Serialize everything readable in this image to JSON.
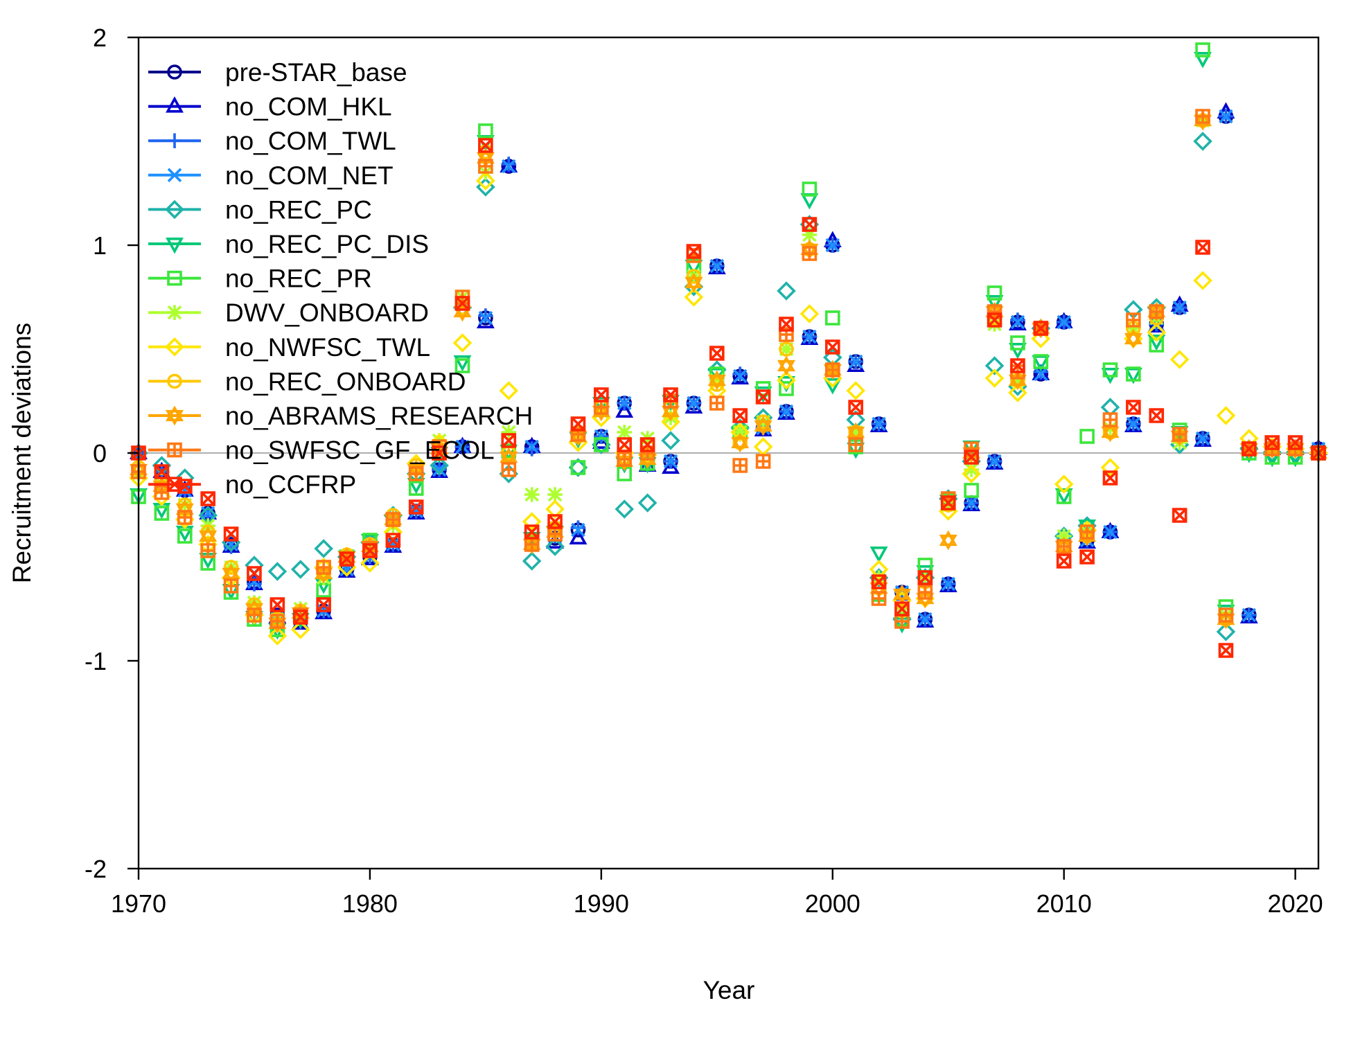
{
  "chart_data": {
    "type": "scatter",
    "xlabel": "Year",
    "ylabel": "Recruitment deviations",
    "xlim": [
      1970,
      2021
    ],
    "ylim": [
      -2,
      2
    ],
    "x_ticks": [
      1970,
      1980,
      1990,
      2000,
      2010,
      2020
    ],
    "y_ticks": [
      -2,
      -1,
      0,
      1,
      2
    ],
    "x_tick_labels": [
      "1970",
      "1980",
      "1990",
      "2000",
      "2010",
      "2020"
    ],
    "y_tick_labels": [
      "-2",
      "-1",
      "0",
      "1",
      "2"
    ],
    "zero_line": true,
    "legend_position": "top-left",
    "series": [
      {
        "name": "pre-STAR_base",
        "color": "#00008B",
        "marker": "circle",
        "values": [
          0.0,
          -0.09,
          -0.18,
          -0.29,
          -0.44,
          -0.62,
          -0.78,
          -0.81,
          -0.76,
          -0.56,
          -0.5,
          -0.44,
          -0.28,
          -0.08,
          0.03,
          0.65,
          1.38,
          0.03,
          -0.41,
          -0.37,
          0.08,
          0.24,
          -0.03,
          -0.04,
          0.24,
          0.9,
          0.37,
          0.12,
          0.2,
          0.56,
          1.0,
          0.44,
          0.14,
          -0.67,
          -0.8,
          -0.63,
          -0.24,
          -0.04,
          0.63,
          0.38,
          0.63,
          -0.42,
          -0.38,
          0.14,
          0.62,
          0.7,
          0.07,
          1.62,
          -0.78,
          0.02,
          0.02,
          0.02,
          0.0
        ]
      },
      {
        "name": "no_COM_HKL",
        "color": "#0000CD",
        "marker": "triangle",
        "values": [
          0.0,
          -0.09,
          -0.18,
          -0.29,
          -0.45,
          -0.63,
          -0.79,
          -0.82,
          -0.77,
          -0.57,
          -0.51,
          -0.45,
          -0.29,
          -0.09,
          0.03,
          0.63,
          1.38,
          0.03,
          -0.43,
          -0.41,
          0.05,
          0.2,
          -0.06,
          -0.07,
          0.22,
          0.89,
          0.36,
          0.11,
          0.19,
          0.55,
          1.02,
          0.42,
          0.13,
          -0.68,
          -0.81,
          -0.64,
          -0.25,
          -0.05,
          0.62,
          0.38,
          0.63,
          -0.43,
          -0.38,
          0.13,
          0.61,
          0.71,
          0.06,
          1.64,
          -0.79,
          0.02,
          0.02,
          0.02,
          0.0
        ]
      },
      {
        "name": "no_COM_TWL",
        "color": "#1E64F0",
        "marker": "plus",
        "values": [
          0.0,
          -0.09,
          -0.19,
          -0.3,
          -0.45,
          -0.63,
          -0.79,
          -0.81,
          -0.76,
          -0.56,
          -0.5,
          -0.44,
          -0.28,
          -0.08,
          0.03,
          0.66,
          1.39,
          0.02,
          -0.4,
          -0.36,
          0.08,
          0.24,
          -0.03,
          -0.04,
          0.24,
          0.9,
          0.38,
          0.12,
          0.2,
          0.56,
          1.0,
          0.44,
          0.14,
          -0.67,
          -0.8,
          -0.63,
          -0.24,
          -0.04,
          0.64,
          0.39,
          0.63,
          -0.42,
          -0.38,
          0.14,
          0.62,
          0.7,
          0.07,
          1.62,
          -0.78,
          0.02,
          0.02,
          0.02,
          0.0
        ]
      },
      {
        "name": "no_COM_NET",
        "color": "#1E90FF",
        "marker": "x",
        "values": [
          0.0,
          -0.09,
          -0.18,
          -0.29,
          -0.44,
          -0.62,
          -0.78,
          -0.81,
          -0.76,
          -0.56,
          -0.5,
          -0.44,
          -0.28,
          -0.08,
          0.03,
          0.65,
          1.38,
          0.03,
          -0.41,
          -0.37,
          0.08,
          0.24,
          -0.03,
          -0.04,
          0.24,
          0.9,
          0.37,
          0.12,
          0.2,
          0.56,
          1.0,
          0.44,
          0.14,
          -0.67,
          -0.8,
          -0.63,
          -0.24,
          -0.04,
          0.63,
          0.38,
          0.63,
          -0.42,
          -0.38,
          0.14,
          0.62,
          0.7,
          0.07,
          1.62,
          -0.78,
          0.02,
          0.02,
          0.02,
          0.0
        ]
      },
      {
        "name": "no_REC_PC",
        "color": "#20B2AA",
        "marker": "diamond",
        "values": [
          0.0,
          -0.06,
          -0.12,
          -0.3,
          -0.43,
          -0.54,
          -0.57,
          -0.56,
          -0.46,
          -0.5,
          -0.43,
          -0.3,
          -0.1,
          -0.06,
          0.7,
          1.28,
          -0.1,
          -0.52,
          -0.45,
          -0.07,
          0.04,
          -0.27,
          -0.24,
          0.06,
          0.8,
          0.4,
          0.12,
          0.17,
          0.78,
          1.1,
          0.46,
          0.16,
          -0.6,
          -0.8,
          -0.6,
          -0.22,
          -0.04,
          0.42,
          0.32,
          0.6,
          -0.4,
          -0.35,
          0.22,
          0.69,
          0.7,
          0.04,
          1.5,
          -0.86,
          0.02,
          0.0,
          0.0,
          0.0
        ]
      },
      {
        "name": "no_REC_PC_DIS",
        "color": "#00C878",
        "marker": "triangle-down",
        "values": [
          -0.2,
          -0.27,
          -0.38,
          -0.51,
          -0.66,
          -0.79,
          -0.85,
          -0.8,
          -0.63,
          -0.5,
          -0.42,
          -0.33,
          -0.15,
          0.0,
          0.44,
          1.5,
          0.01,
          -0.41,
          -0.38,
          0.07,
          0.24,
          -0.05,
          -0.05,
          0.25,
          0.9,
          0.38,
          0.1,
          0.29,
          0.34,
          1.22,
          0.33,
          0.02,
          -0.48,
          -0.82,
          -0.57,
          -0.23,
          0.03,
          0.73,
          0.5,
          0.44,
          -0.2,
          -0.35,
          0.38,
          0.38,
          0.54,
          0.1,
          1.9,
          -0.76,
          0.0,
          -0.02,
          -0.02,
          0.0
        ]
      },
      {
        "name": "no_REC_PR",
        "color": "#3CE63C",
        "marker": "square",
        "values": [
          -0.21,
          -0.29,
          -0.4,
          -0.53,
          -0.67,
          -0.8,
          -0.85,
          -0.78,
          -0.66,
          -0.5,
          -0.42,
          -0.32,
          -0.17,
          0.0,
          0.42,
          1.55,
          0.01,
          -0.43,
          -0.37,
          -0.07,
          0.04,
          -0.1,
          -0.05,
          0.25,
          0.9,
          0.38,
          0.1,
          0.31,
          0.31,
          1.27,
          0.65,
          0.03,
          -0.68,
          -0.8,
          -0.54,
          -0.23,
          -0.18,
          0.77,
          0.53,
          0.44,
          -0.21,
          0.08,
          0.4,
          0.38,
          0.52,
          0.11,
          1.94,
          -0.74,
          0.0,
          -0.02,
          -0.02,
          0.0
        ]
      },
      {
        "name": "DWV_ONBOARD",
        "color": "#ADFF2F",
        "marker": "asterisk",
        "values": [
          -0.1,
          -0.15,
          -0.25,
          -0.35,
          -0.55,
          -0.72,
          -0.8,
          -0.75,
          -0.6,
          -0.5,
          -0.45,
          -0.35,
          -0.08,
          0.06,
          0.75,
          1.35,
          0.1,
          -0.2,
          -0.2,
          0.1,
          0.2,
          0.1,
          0.07,
          0.17,
          0.85,
          0.35,
          0.1,
          0.15,
          0.5,
          1.05,
          0.4,
          0.1,
          -0.6,
          -0.75,
          -0.6,
          -0.25,
          -0.08,
          0.62,
          0.35,
          0.6,
          -0.4,
          -0.38,
          0.12,
          0.6,
          0.65,
          0.05,
          1.6,
          -0.78,
          0.02,
          0.02,
          0.02,
          0.0
        ]
      },
      {
        "name": "no_NWFSC_TWL",
        "color": "#FFE600",
        "marker": "diamond",
        "values": [
          -0.12,
          -0.21,
          -0.32,
          -0.44,
          -0.6,
          -0.78,
          -0.88,
          -0.85,
          -0.55,
          -0.55,
          -0.53,
          -0.38,
          -0.05,
          0.05,
          0.53,
          1.31,
          0.3,
          -0.33,
          -0.27,
          0.05,
          0.17,
          0.0,
          -0.01,
          0.15,
          0.75,
          0.3,
          0.1,
          0.03,
          0.35,
          0.67,
          0.36,
          0.3,
          -0.56,
          -0.71,
          -0.7,
          -0.28,
          -0.1,
          0.36,
          0.29,
          0.55,
          -0.15,
          -0.37,
          -0.07,
          0.55,
          0.58,
          0.45,
          0.83,
          0.18,
          0.07,
          0.03,
          0.02,
          0.0
        ]
      },
      {
        "name": "no_REC_ONBOARD",
        "color": "#FFC800",
        "marker": "circle",
        "values": [
          -0.07,
          -0.13,
          -0.25,
          -0.38,
          -0.55,
          -0.73,
          -0.8,
          -0.76,
          -0.58,
          -0.49,
          -0.44,
          -0.3,
          -0.06,
          0.02,
          0.7,
          1.45,
          0.0,
          -0.42,
          -0.36,
          0.08,
          0.22,
          -0.02,
          -0.02,
          0.22,
          0.85,
          0.33,
          0.05,
          0.15,
          0.5,
          0.98,
          0.4,
          0.1,
          -0.65,
          -0.76,
          -0.62,
          -0.25,
          -0.02,
          0.65,
          0.35,
          0.6,
          -0.45,
          -0.4,
          0.1,
          0.6,
          0.65,
          0.08,
          1.6,
          -0.8,
          0.02,
          0.02,
          0.02,
          0.0
        ]
      },
      {
        "name": "no_ABRAMS_RESEARCH",
        "color": "#FFA500",
        "marker": "star",
        "values": [
          -0.08,
          -0.16,
          -0.27,
          -0.4,
          -0.58,
          -0.75,
          -0.82,
          -0.77,
          -0.58,
          -0.5,
          -0.45,
          -0.32,
          -0.08,
          0.02,
          0.68,
          1.42,
          -0.02,
          -0.44,
          -0.38,
          0.08,
          0.2,
          -0.04,
          -0.03,
          0.2,
          0.82,
          0.35,
          0.05,
          0.13,
          0.42,
          0.98,
          0.4,
          0.1,
          -0.65,
          -0.68,
          -0.7,
          -0.42,
          0.0,
          0.68,
          0.35,
          0.6,
          -0.45,
          -0.4,
          0.1,
          0.55,
          0.68,
          0.08,
          1.6,
          -0.8,
          0.02,
          0.02,
          0.02,
          0.0
        ]
      },
      {
        "name": "no_SWFSC_GF_ECOL",
        "color": "#FF7814",
        "marker": "boxed-plus",
        "values": [
          -0.09,
          -0.19,
          -0.31,
          -0.47,
          -0.64,
          -0.78,
          -0.81,
          -0.78,
          -0.55,
          -0.51,
          -0.46,
          -0.32,
          -0.1,
          0.03,
          0.75,
          1.38,
          -0.08,
          -0.44,
          -0.39,
          0.09,
          0.22,
          -0.03,
          0.0,
          0.25,
          0.95,
          0.24,
          -0.06,
          -0.04,
          0.57,
          0.96,
          0.4,
          0.04,
          -0.7,
          -0.81,
          -0.67,
          -0.22,
          0.02,
          0.68,
          0.39,
          0.6,
          -0.45,
          -0.38,
          0.16,
          0.64,
          0.68,
          0.09,
          1.62,
          -0.78,
          0.02,
          0.02,
          0.02,
          0.0
        ]
      },
      {
        "name": "no_CCFRP",
        "color": "#FF2800",
        "marker": "boxed-x",
        "values": [
          0.0,
          -0.09,
          -0.16,
          -0.22,
          -0.39,
          -0.58,
          -0.73,
          -0.79,
          -0.73,
          -0.51,
          -0.47,
          -0.42,
          -0.26,
          0.0,
          0.72,
          1.48,
          0.06,
          -0.38,
          -0.33,
          0.14,
          0.28,
          0.04,
          0.04,
          0.28,
          0.97,
          0.48,
          0.18,
          0.27,
          0.62,
          1.1,
          0.51,
          0.22,
          -0.62,
          -0.75,
          -0.6,
          -0.24,
          -0.02,
          0.64,
          0.42,
          0.6,
          -0.52,
          -0.5,
          -0.12,
          0.22,
          0.18,
          -0.3,
          0.99,
          -0.95,
          0.02,
          0.05,
          0.05,
          0.0
        ]
      }
    ]
  }
}
